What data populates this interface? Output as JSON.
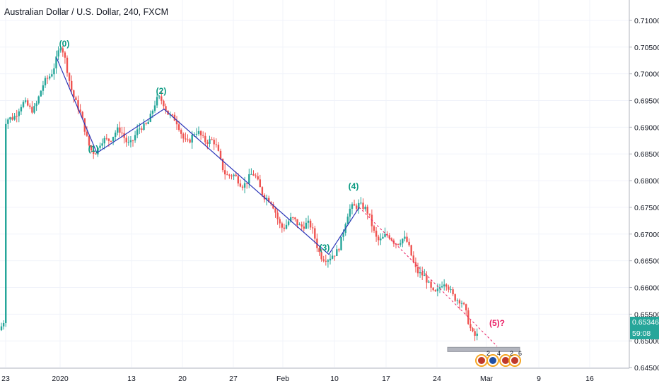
{
  "header": {
    "title": "Australian Dollar / U.S. Dollar, 240, FXCM"
  },
  "price_axis": {
    "ticks": [
      "0.71000",
      "0.70500",
      "0.70000",
      "0.69500",
      "0.69000",
      "0.68500",
      "0.68000",
      "0.67500",
      "0.67000",
      "0.66500",
      "0.66000",
      "0.65500",
      "0.65000",
      "0.64500"
    ],
    "last_price": "0.65346",
    "countdown": "59:08"
  },
  "colors": {
    "up": "#26a69a",
    "down": "#ef5350",
    "wave_line": "#2b35b8",
    "projection": "#e91e63",
    "wave_label": "#089981",
    "last_price_bg": "#26a69a",
    "countdown_bg": "#26a69a"
  },
  "icons": [
    "us-flag-icon",
    "au-flag-icon",
    "us-flag-icon"
  ],
  "event_counts": [
    "2",
    "4",
    "2",
    "6"
  ],
  "chart_data": {
    "type": "candlestick",
    "title": "Australian Dollar / U.S. Dollar, 240, FXCM",
    "ylim": [
      0.6425,
      0.7125
    ],
    "y_scale": "linear",
    "grid": true,
    "x_ticks": [
      "23",
      "2020",
      "13",
      "20",
      "27",
      "Feb",
      "10",
      "17",
      "24",
      "Mar",
      "9",
      "16"
    ],
    "close_path": [
      [
        "23",
        0.689
      ],
      [
        "2020",
        0.7025
      ],
      [
        "13",
        0.6875
      ],
      [
        "20",
        0.69
      ],
      [
        "27",
        0.676
      ],
      [
        "Feb",
        0.67
      ],
      [
        "10",
        0.668
      ],
      [
        "17",
        0.672
      ],
      [
        "24",
        0.66
      ],
      [
        "Mar",
        0.652
      ]
    ],
    "waves": [
      {
        "label": "(0)",
        "price": 0.703
      },
      {
        "label": "(1)",
        "price": 0.6852
      },
      {
        "label": "(2)",
        "price": 0.6934
      },
      {
        "label": "(3)",
        "price": 0.6662
      },
      {
        "label": "(4)",
        "price": 0.675
      },
      {
        "label": "(5)?",
        "price": 0.649
      }
    ],
    "target_zone": [
      0.648,
      0.6488
    ],
    "last_price": 0.65346
  }
}
